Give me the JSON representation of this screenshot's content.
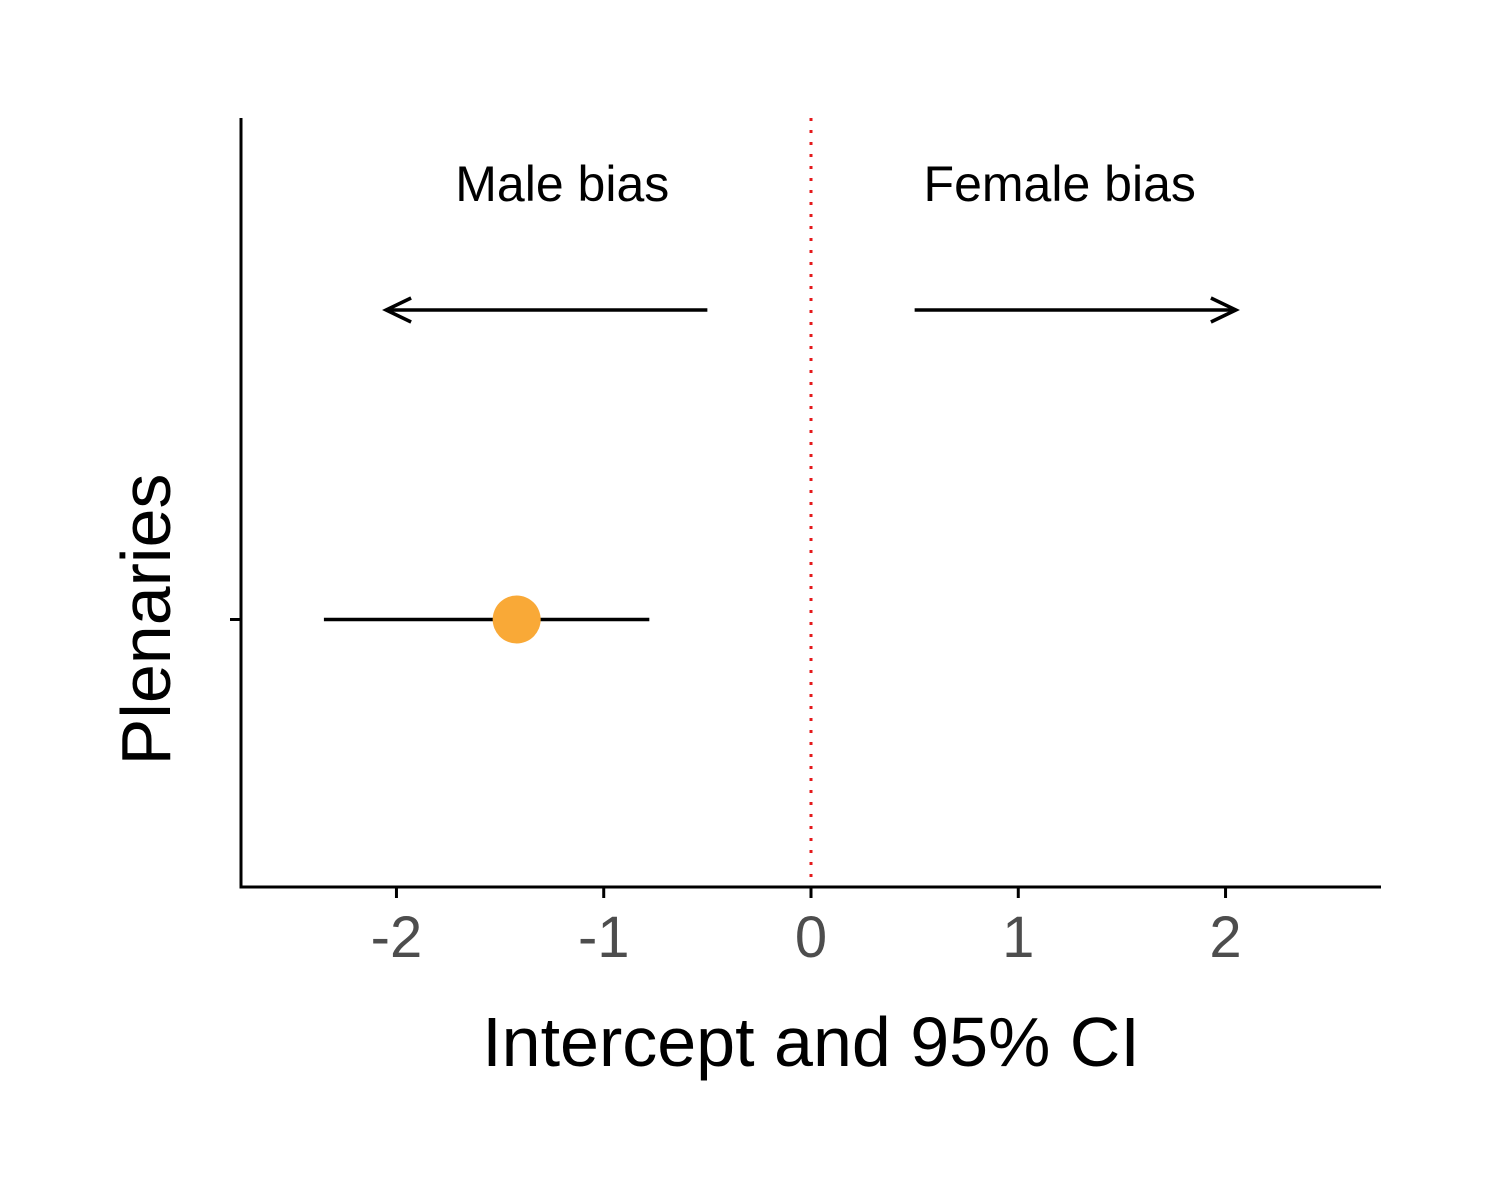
{
  "chart_data": {
    "type": "scatter",
    "title": "",
    "xlabel": "Intercept and 95% CI",
    "ylabel": "",
    "xlim": [
      -2.75,
      2.75
    ],
    "x_ticks": [
      -2,
      -1,
      0,
      1,
      2
    ],
    "x_tick_labels": [
      "-2",
      "-1",
      "0",
      "1",
      "2"
    ],
    "categories": [
      "Plenaries"
    ],
    "series": [
      {
        "estimate": [
          -1.42
        ],
        "ci_lower": [
          -2.35
        ],
        "ci_upper": [
          -0.78
        ],
        "color": "#f9a937"
      }
    ],
    "reference_line": {
      "x": 0,
      "style": "dotted",
      "color": "#e41a1c"
    },
    "annotations": [
      {
        "text": "Male bias",
        "x": -1.2,
        "arrow_from": -0.5,
        "arrow_to": -2.05
      },
      {
        "text": "Female bias",
        "x": 1.2,
        "arrow_from": 0.5,
        "arrow_to": 2.05
      }
    ],
    "grid": false,
    "legend": "none"
  }
}
